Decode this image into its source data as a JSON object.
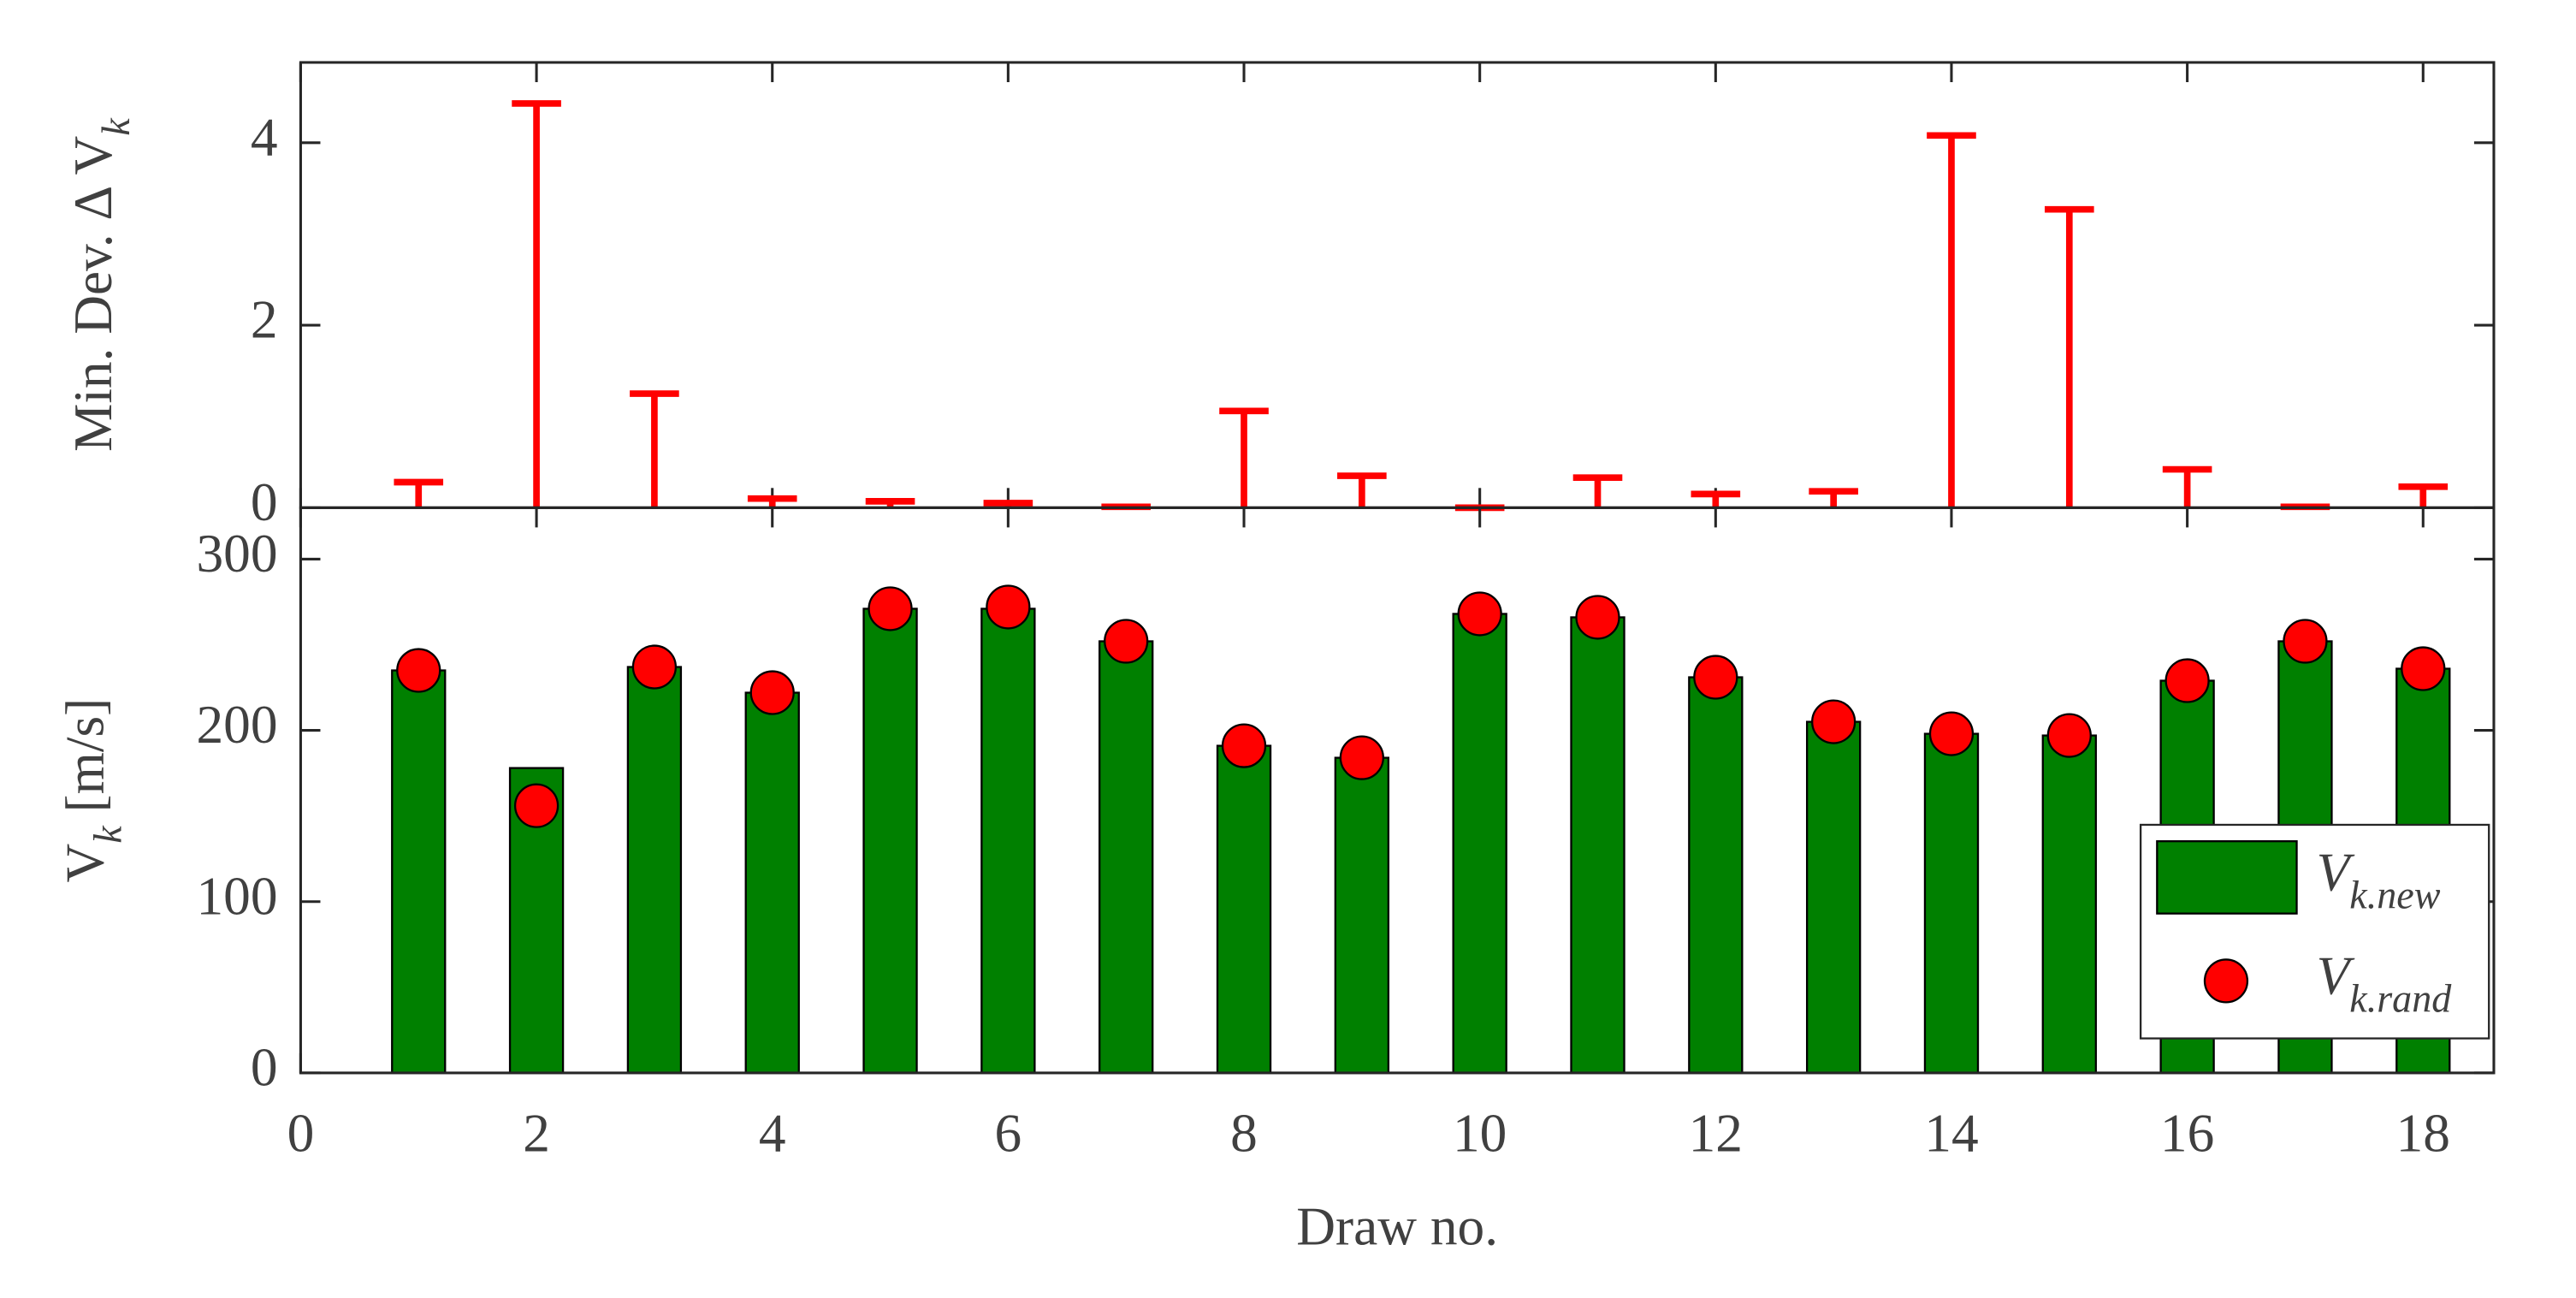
{
  "chart_data": [
    {
      "type": "errorbar",
      "ylabel": "Min. Dev. Δ Vk",
      "color": "#ff0000",
      "x": [
        1,
        2,
        3,
        4,
        5,
        6,
        7,
        8,
        9,
        10,
        11,
        12,
        13,
        14,
        15,
        16,
        17,
        18
      ],
      "values": [
        0.28,
        4.43,
        1.25,
        0.1,
        0.07,
        0.05,
        0.01,
        1.06,
        0.35,
        0,
        0.33,
        0.15,
        0.18,
        4.08,
        3.27,
        0.42,
        0.01,
        0.23
      ],
      "xlim": [
        0,
        18.6
      ],
      "ylim": [
        0,
        4.88
      ],
      "yticks": [
        0,
        2,
        4
      ]
    },
    {
      "type": "bar",
      "xlabel": "Draw no.",
      "ylabel": "Vk [m/s]",
      "x": [
        1,
        2,
        3,
        4,
        5,
        6,
        7,
        8,
        9,
        10,
        11,
        12,
        13,
        14,
        15,
        16,
        17,
        18
      ],
      "series": [
        {
          "name": "Vk.new",
          "type": "bar",
          "color": "#008000",
          "values": [
            235,
            178,
            237,
            222,
            271,
            271,
            252,
            191,
            184,
            268,
            266,
            231,
            205,
            198,
            197,
            229,
            252,
            236
          ]
        },
        {
          "name": "Vk.rand",
          "type": "scatter",
          "color": "#ff0000",
          "values": [
            235,
            156,
            237,
            222,
            271,
            272,
            252,
            191,
            184,
            268,
            266,
            231,
            205,
            198,
            197,
            229,
            252,
            236
          ]
        }
      ],
      "xlim": [
        0,
        18.6
      ],
      "ylim": [
        0,
        330
      ],
      "xticks": [
        0,
        2,
        4,
        6,
        8,
        10,
        12,
        14,
        16,
        18
      ],
      "yticks": [
        0,
        100,
        200,
        300
      ],
      "legend": "lower right"
    }
  ]
}
